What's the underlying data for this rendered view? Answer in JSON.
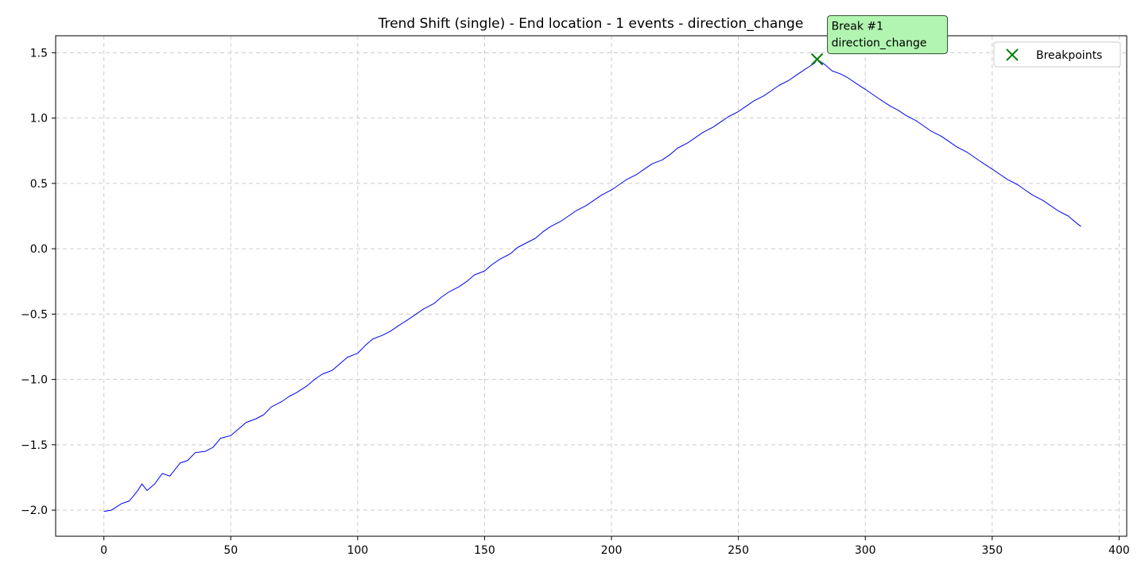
{
  "chart_data": {
    "type": "line",
    "title": "Trend Shift (single) - End location - 1 events - direction_change",
    "xlabel": "",
    "ylabel": "",
    "xlim": [
      -19,
      403
    ],
    "ylim": [
      -2.2,
      1.63
    ],
    "xticks": [
      0,
      50,
      100,
      150,
      200,
      250,
      300,
      350,
      400
    ],
    "yticks": [
      -2.0,
      -1.5,
      -1.0,
      -0.5,
      0.0,
      0.5,
      1.0,
      1.5
    ],
    "xtick_labels": [
      "0",
      "50",
      "100",
      "150",
      "200",
      "250",
      "300",
      "350",
      "400"
    ],
    "ytick_labels": [
      "−2.0",
      "−1.5",
      "−1.0",
      "−0.5",
      "0.0",
      "0.5",
      "1.0",
      "1.5"
    ],
    "grid": true,
    "legend": {
      "placement": "top-right",
      "entries": [
        "Breakpoints"
      ]
    },
    "series": [
      {
        "color": "#0000ee",
        "x": [
          0,
          3,
          7,
          10,
          13,
          15,
          17,
          20,
          23,
          26,
          30,
          33,
          36,
          40,
          43,
          46,
          50,
          53,
          56,
          60,
          63,
          66,
          70,
          73,
          76,
          80,
          83,
          86,
          90,
          93,
          96,
          100,
          103,
          106,
          110,
          113,
          116,
          120,
          123,
          126,
          130,
          133,
          136,
          140,
          143,
          146,
          150,
          153,
          156,
          160,
          163,
          166,
          170,
          173,
          176,
          180,
          183,
          186,
          190,
          193,
          196,
          200,
          203,
          206,
          210,
          213,
          216,
          220,
          223,
          226,
          230,
          233,
          236,
          240,
          243,
          246,
          250,
          253,
          256,
          260,
          263,
          266,
          270,
          273,
          276,
          280,
          281,
          284,
          287,
          290,
          293,
          296,
          300,
          303,
          306,
          310,
          313,
          316,
          320,
          323,
          326,
          330,
          333,
          336,
          340,
          343,
          346,
          350,
          353,
          356,
          360,
          363,
          366,
          370,
          373,
          376,
          380,
          383,
          385
        ],
        "y": [
          -2.01,
          -2.0,
          -1.95,
          -1.93,
          -1.86,
          -1.8,
          -1.85,
          -1.8,
          -1.72,
          -1.74,
          -1.64,
          -1.62,
          -1.56,
          -1.55,
          -1.52,
          -1.45,
          -1.43,
          -1.38,
          -1.33,
          -1.3,
          -1.27,
          -1.21,
          -1.17,
          -1.13,
          -1.1,
          -1.05,
          -1.0,
          -0.96,
          -0.93,
          -0.88,
          -0.83,
          -0.8,
          -0.74,
          -0.69,
          -0.66,
          -0.63,
          -0.59,
          -0.54,
          -0.5,
          -0.46,
          -0.42,
          -0.37,
          -0.33,
          -0.29,
          -0.25,
          -0.2,
          -0.17,
          -0.12,
          -0.08,
          -0.04,
          0.01,
          0.04,
          0.08,
          0.13,
          0.17,
          0.21,
          0.25,
          0.29,
          0.33,
          0.37,
          0.41,
          0.45,
          0.49,
          0.53,
          0.57,
          0.61,
          0.65,
          0.68,
          0.72,
          0.77,
          0.81,
          0.85,
          0.89,
          0.93,
          0.97,
          1.01,
          1.05,
          1.09,
          1.13,
          1.17,
          1.21,
          1.25,
          1.29,
          1.33,
          1.37,
          1.42,
          1.45,
          1.41,
          1.36,
          1.34,
          1.31,
          1.27,
          1.22,
          1.18,
          1.14,
          1.09,
          1.06,
          1.02,
          0.98,
          0.94,
          0.9,
          0.86,
          0.82,
          0.78,
          0.74,
          0.7,
          0.66,
          0.61,
          0.57,
          0.53,
          0.49,
          0.45,
          0.41,
          0.37,
          0.33,
          0.29,
          0.25,
          0.2,
          0.17
        ]
      }
    ],
    "breakpoints": [
      {
        "x": 281,
        "y": 1.45,
        "color": "#008000",
        "label_lines": [
          "Break #1",
          "direction_change"
        ],
        "label_box_color": "#b1f5b1"
      }
    ]
  }
}
